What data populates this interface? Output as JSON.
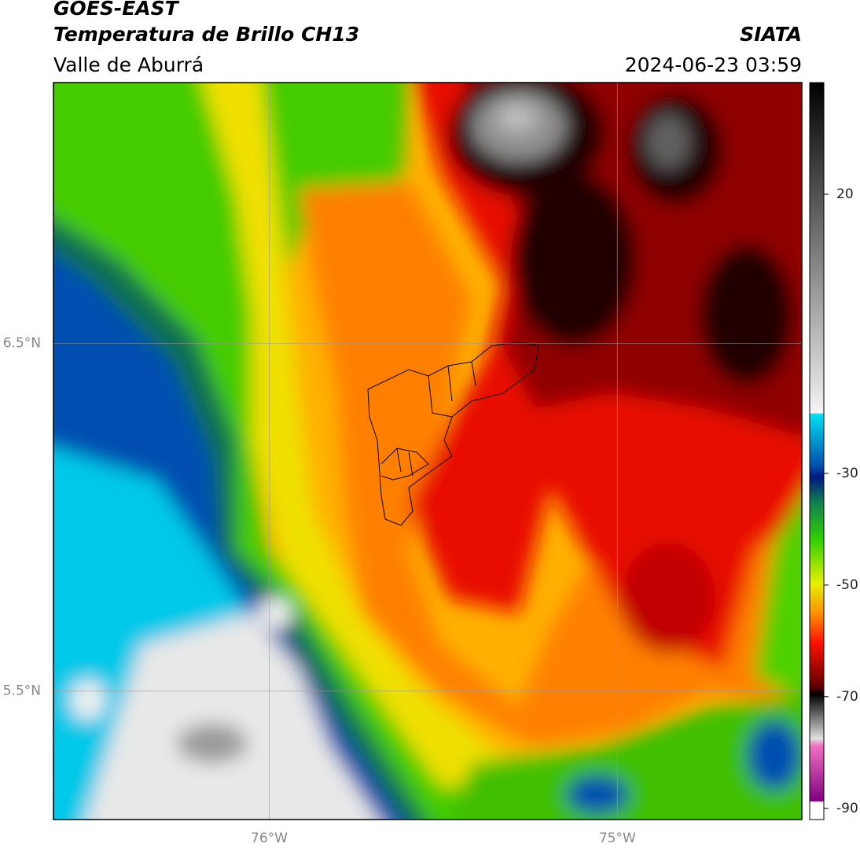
{
  "header": {
    "title": "GOES-EAST",
    "subtitle": "Temperatura de Brillo CH13",
    "region": "Valle de Aburrá",
    "source": "SIATA",
    "datetime": "2024-06-23 03:59"
  },
  "map": {
    "xlim": [
      -76.62,
      -74.47
    ],
    "ylim": [
      5.13,
      7.25
    ],
    "xticks": [
      {
        "value": -76,
        "label": "76°W"
      },
      {
        "value": -75,
        "label": "75°W"
      }
    ],
    "yticks": [
      {
        "value": 6.5,
        "label": "6.5°N"
      },
      {
        "value": 5.5,
        "label": "5.5°N"
      }
    ],
    "grid": true
  },
  "colorbar": {
    "lim": [
      -92,
      40
    ],
    "ticks": [
      20,
      -30,
      -50,
      -70,
      -90
    ]
  }
}
